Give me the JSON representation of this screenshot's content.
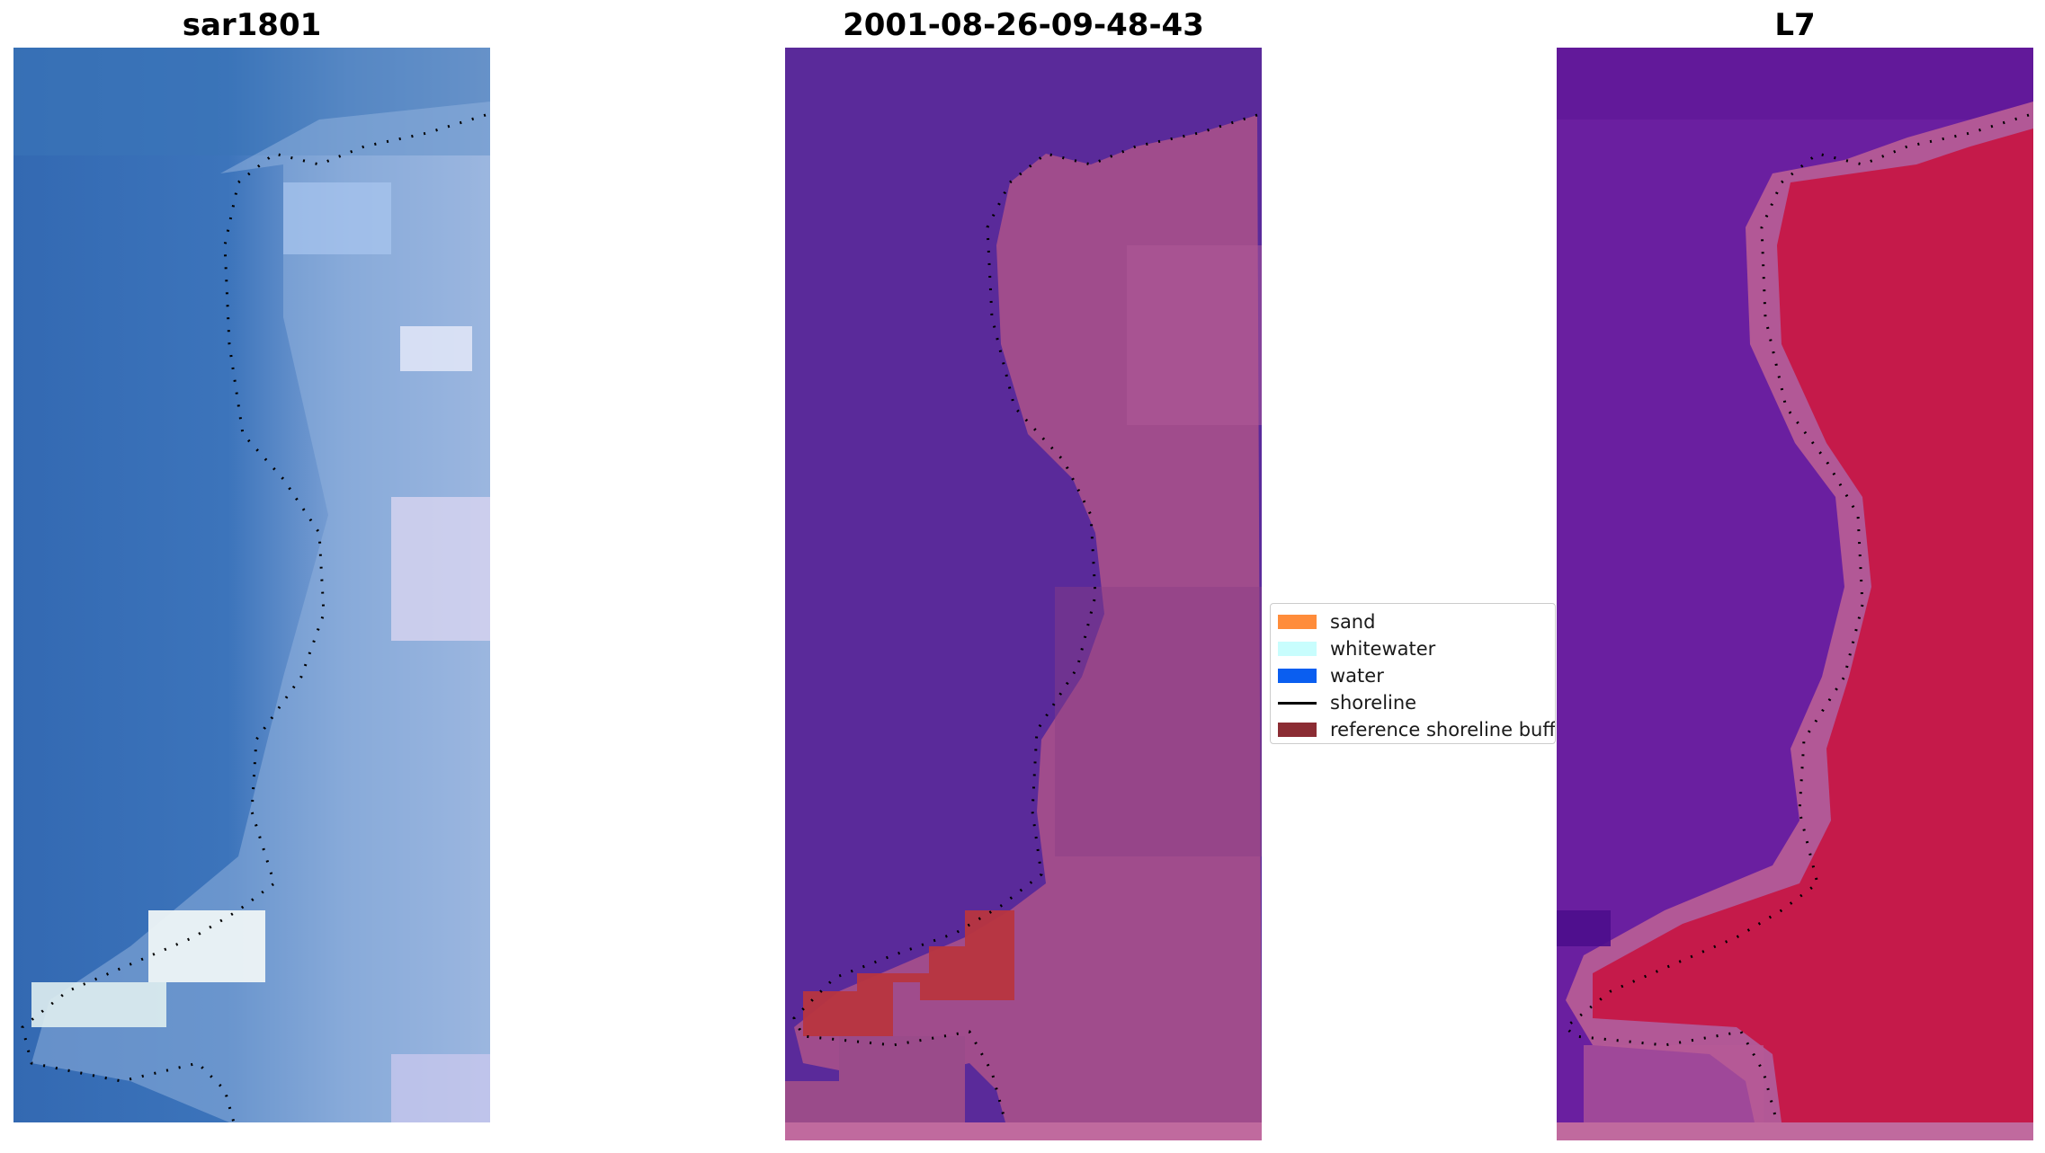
{
  "panels": [
    {
      "id": "rgb",
      "title": "sar1801",
      "image": "true-color satellite image with shoreline overlay"
    },
    {
      "id": "classified",
      "title": "2001-08-26-09-48-43",
      "image": "classified image with reference shoreline buffer and shoreline overlay"
    },
    {
      "id": "index",
      "title": "L7",
      "image": "water index image with shoreline overlay"
    }
  ],
  "legend": {
    "items": [
      {
        "label": "sand",
        "color": "#ff8c3a",
        "kind": "patch"
      },
      {
        "label": "whitewater",
        "color": "#c8fdfd",
        "kind": "patch"
      },
      {
        "label": "water",
        "color": "#0a5ef0",
        "kind": "patch"
      },
      {
        "label": "shoreline",
        "color": "#000000",
        "kind": "line"
      },
      {
        "label": "reference shoreline buffer",
        "color": "#8b2c33",
        "kind": "patch"
      }
    ]
  },
  "colors": {
    "ocean_blue": "#3a76b8",
    "water_purple": "#5a2a9a",
    "land_pink": "#a04c8c",
    "buffer_red": "#b8353f",
    "index_red": "#c51a4a",
    "index_purple": "#6a1fa0"
  }
}
